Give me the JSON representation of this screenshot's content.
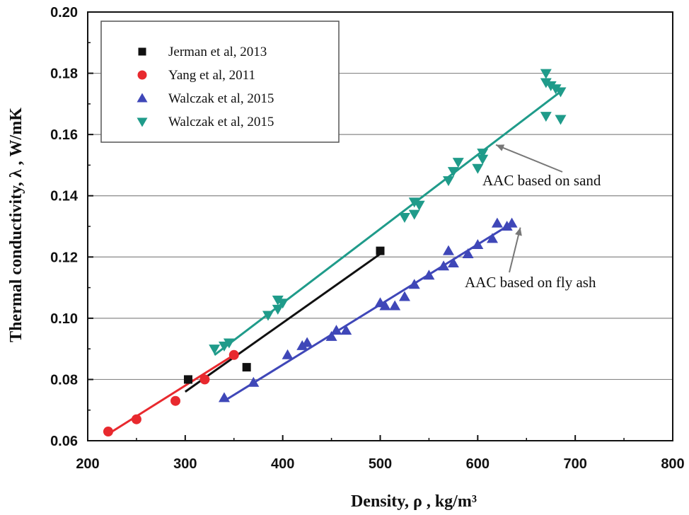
{
  "chart_data": {
    "type": "scatter",
    "title": "",
    "xlabel": "Density, ρ , kg/m³",
    "ylabel": "Thermal conductivity, λ , W/mK",
    "xlim": [
      200,
      800
    ],
    "ylim": [
      0.06,
      0.2
    ],
    "xticks": [
      "200",
      "300",
      "400",
      "500",
      "600",
      "700",
      "800"
    ],
    "yticks": [
      "0.06",
      "0.08",
      "0.10",
      "0.12",
      "0.14",
      "0.16",
      "0.18",
      "0.20"
    ],
    "grid": "horizontal",
    "legend_position": "top-left",
    "series": [
      {
        "name": "Jerman et al, 2013",
        "marker": "square",
        "color": "#111111",
        "line_color": "#111111",
        "points": [
          [
            303,
            0.08
          ],
          [
            363,
            0.084
          ],
          [
            500,
            0.122
          ]
        ],
        "fit": [
          [
            300,
            0.076
          ],
          [
            500,
            0.121
          ]
        ]
      },
      {
        "name": "Yang et al, 2011",
        "marker": "circle",
        "color": "#e8292e",
        "line_color": "#e8292e",
        "points": [
          [
            221,
            0.063
          ],
          [
            250,
            0.067
          ],
          [
            290,
            0.073
          ],
          [
            320,
            0.08
          ],
          [
            350,
            0.088
          ]
        ],
        "fit": [
          [
            220,
            0.062
          ],
          [
            350,
            0.088
          ]
        ]
      },
      {
        "name": "Walczak et al, 2015",
        "marker": "triangle-up",
        "color": "#3f47b8",
        "line_color": "#3f47b8",
        "points": [
          [
            340,
            0.074
          ],
          [
            370,
            0.079
          ],
          [
            405,
            0.088
          ],
          [
            420,
            0.091
          ],
          [
            425,
            0.092
          ],
          [
            450,
            0.094
          ],
          [
            455,
            0.096
          ],
          [
            465,
            0.096
          ],
          [
            500,
            0.105
          ],
          [
            505,
            0.104
          ],
          [
            515,
            0.104
          ],
          [
            525,
            0.107
          ],
          [
            535,
            0.111
          ],
          [
            550,
            0.114
          ],
          [
            565,
            0.117
          ],
          [
            570,
            0.122
          ],
          [
            575,
            0.118
          ],
          [
            590,
            0.121
          ],
          [
            600,
            0.124
          ],
          [
            615,
            0.126
          ],
          [
            620,
            0.131
          ],
          [
            630,
            0.13
          ],
          [
            635,
            0.131
          ]
        ],
        "fit": [
          [
            340,
            0.073
          ],
          [
            635,
            0.131
          ]
        ]
      },
      {
        "name": "Walczak et al, 2015",
        "marker": "triangle-down",
        "color": "#1f9b8a",
        "line_color": "#1f9b8a",
        "points": [
          [
            330,
            0.09
          ],
          [
            340,
            0.091
          ],
          [
            345,
            0.092
          ],
          [
            385,
            0.101
          ],
          [
            395,
            0.103
          ],
          [
            400,
            0.105
          ],
          [
            395,
            0.106
          ],
          [
            525,
            0.133
          ],
          [
            535,
            0.134
          ],
          [
            540,
            0.137
          ],
          [
            535,
            0.138
          ],
          [
            570,
            0.145
          ],
          [
            575,
            0.148
          ],
          [
            580,
            0.151
          ],
          [
            600,
            0.149
          ],
          [
            605,
            0.152
          ],
          [
            605,
            0.154
          ],
          [
            670,
            0.166
          ],
          [
            670,
            0.177
          ],
          [
            675,
            0.176
          ],
          [
            670,
            0.18
          ],
          [
            680,
            0.175
          ],
          [
            685,
            0.174
          ],
          [
            685,
            0.165
          ]
        ],
        "fit": [
          [
            330,
            0.088
          ],
          [
            685,
            0.174
          ]
        ]
      }
    ],
    "annotations": [
      {
        "text": "AAC based on sand",
        "arrow_to": [
          610,
          0.158
        ]
      },
      {
        "text": "AAC based on fly ash",
        "arrow_to": [
          635,
          0.131
        ]
      }
    ]
  }
}
